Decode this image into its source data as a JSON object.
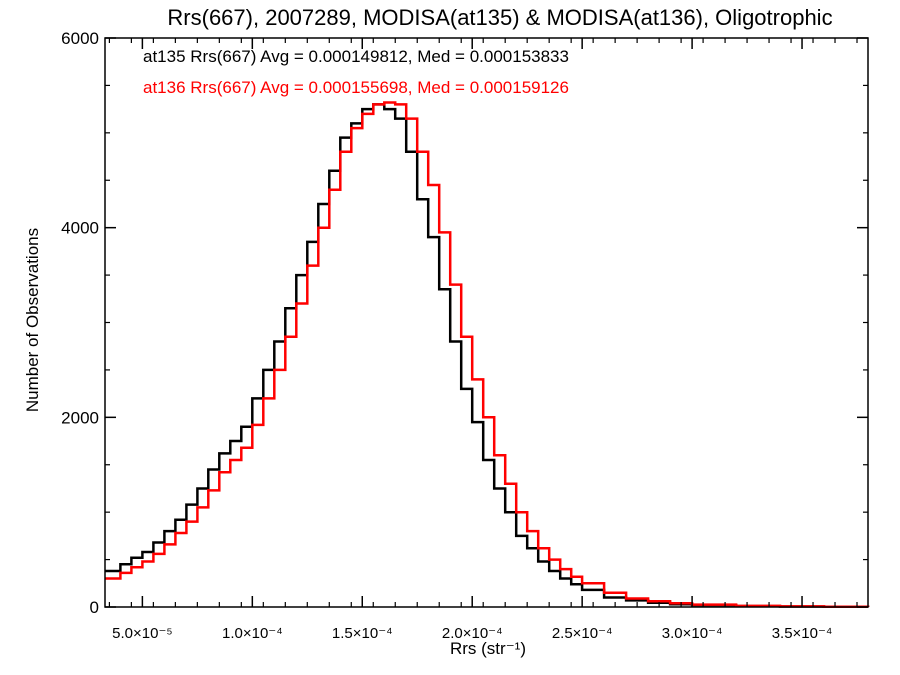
{
  "chart_data": {
    "type": "line",
    "title": "Rrs(667), 2007289, MODISA(at135) & MODISA(at136), Oligotrophic",
    "xlabel": "Rrs (str⁻¹)",
    "ylabel": "Number of Observations",
    "xlim": [
      3.3e-05,
      0.00038
    ],
    "ylim": [
      0,
      6000
    ],
    "x_ticks": [
      {
        "value": 5e-05,
        "label": "5.0×10⁻⁵"
      },
      {
        "value": 0.0001,
        "label": "1.0×10⁻⁴"
      },
      {
        "value": 0.00015,
        "label": "1.5×10⁻⁴"
      },
      {
        "value": 0.0002,
        "label": "2.0×10⁻⁴"
      },
      {
        "value": 0.00025,
        "label": "2.5×10⁻⁴"
      },
      {
        "value": 0.0003,
        "label": "3.0×10⁻⁴"
      },
      {
        "value": 0.00035,
        "label": "3.5×10⁻⁴"
      }
    ],
    "y_ticks": [
      {
        "value": 0,
        "label": "0"
      },
      {
        "value": 2000,
        "label": "2000"
      },
      {
        "value": 4000,
        "label": "4000"
      },
      {
        "value": 6000,
        "label": "6000"
      }
    ],
    "grid": false,
    "legend_position": "top-left",
    "series": [
      {
        "name": "at135 Rrs(667) Avg = 0.000149812, Med = 0.000153833",
        "color": "#000000",
        "x": [
          3.5e-05,
          4e-05,
          4.5e-05,
          5e-05,
          5.5e-05,
          6e-05,
          6.5e-05,
          7e-05,
          7.5e-05,
          8e-05,
          8.5e-05,
          9e-05,
          9.5e-05,
          0.0001,
          0.000105,
          0.00011,
          0.000115,
          0.00012,
          0.000125,
          0.00013,
          0.000135,
          0.00014,
          0.000145,
          0.00015,
          0.000155,
          0.00016,
          0.000165,
          0.00017,
          0.000175,
          0.00018,
          0.000185,
          0.00019,
          0.000195,
          0.0002,
          0.000205,
          0.00021,
          0.000215,
          0.00022,
          0.000225,
          0.00023,
          0.000235,
          0.00024,
          0.000245,
          0.00025,
          0.00026,
          0.00027,
          0.00028,
          0.00029,
          0.0003,
          0.00032,
          0.00034,
          0.00036,
          0.00038
        ],
        "y": [
          380,
          450,
          520,
          580,
          680,
          800,
          920,
          1080,
          1250,
          1450,
          1620,
          1750,
          1900,
          2200,
          2500,
          2800,
          3150,
          3500,
          3850,
          4250,
          4600,
          4950,
          5100,
          5250,
          5300,
          5250,
          5150,
          4800,
          4300,
          3900,
          3350,
          2800,
          2300,
          1950,
          1550,
          1250,
          1000,
          750,
          620,
          480,
          380,
          300,
          240,
          180,
          100,
          70,
          45,
          30,
          20,
          10,
          5,
          2,
          0
        ]
      },
      {
        "name": "at136 Rrs(667) Avg = 0.000155698, Med = 0.000159126",
        "color": "#ff0000",
        "x": [
          3.5e-05,
          4e-05,
          4.5e-05,
          5e-05,
          5.5e-05,
          6e-05,
          6.5e-05,
          7e-05,
          7.5e-05,
          8e-05,
          8.5e-05,
          9e-05,
          9.5e-05,
          0.0001,
          0.000105,
          0.00011,
          0.000115,
          0.00012,
          0.000125,
          0.00013,
          0.000135,
          0.00014,
          0.000145,
          0.00015,
          0.000155,
          0.00016,
          0.000165,
          0.00017,
          0.000175,
          0.00018,
          0.000185,
          0.00019,
          0.000195,
          0.0002,
          0.000205,
          0.00021,
          0.000215,
          0.00022,
          0.000225,
          0.00023,
          0.000235,
          0.00024,
          0.000245,
          0.00025,
          0.00026,
          0.00027,
          0.00028,
          0.00029,
          0.0003,
          0.00032,
          0.00034,
          0.00036,
          0.00038
        ],
        "y": [
          300,
          360,
          420,
          480,
          560,
          660,
          780,
          900,
          1050,
          1230,
          1420,
          1550,
          1680,
          1920,
          2200,
          2500,
          2850,
          3200,
          3600,
          4000,
          4400,
          4800,
          5050,
          5200,
          5300,
          5320,
          5300,
          5150,
          4800,
          4450,
          3950,
          3400,
          2850,
          2400,
          2000,
          1600,
          1300,
          1000,
          800,
          620,
          500,
          400,
          320,
          250,
          150,
          90,
          60,
          40,
          25,
          12,
          6,
          3,
          0
        ]
      }
    ]
  }
}
